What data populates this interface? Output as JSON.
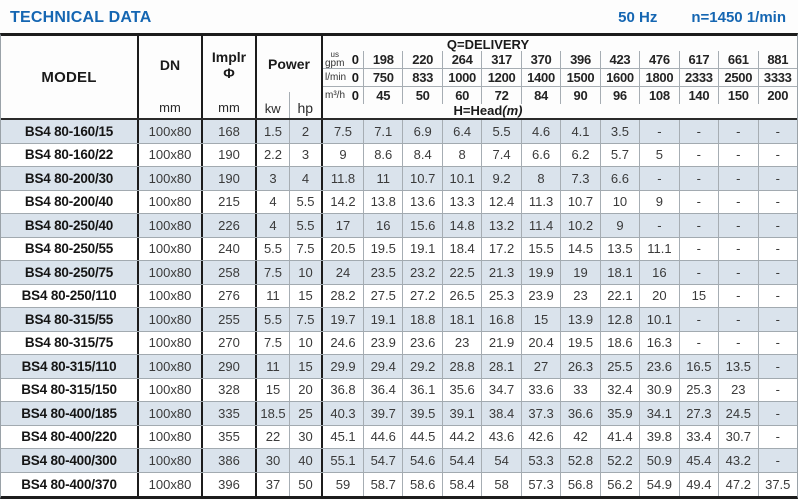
{
  "header": {
    "title": "TECHNICAL DATA",
    "frequency": "50 Hz",
    "speed": "n=1450 1/min"
  },
  "colors": {
    "accent_blue": "#1566b2",
    "row_stripe": "#dae3ec"
  },
  "table": {
    "columns": {
      "model": "MODEL",
      "dn": "DN",
      "dn_unit": "mm",
      "impeller_line1": "Implr",
      "impeller_line2": "Φ",
      "impeller_unit": "mm",
      "power": "Power",
      "power_kw": "kw",
      "power_hp": "hp",
      "delivery_title": "Q=DELIVERY",
      "head_title": "H=Head",
      "head_unit": "(m)"
    },
    "flow_header": [
      {
        "small": "us",
        "label": "gpm",
        "zero": "0",
        "values": [
          "198",
          "220",
          "264",
          "317",
          "370",
          "396",
          "423",
          "476",
          "617",
          "661",
          "881"
        ]
      },
      {
        "small": "",
        "label": "l/min",
        "zero": "0",
        "values": [
          "750",
          "833",
          "1000",
          "1200",
          "1400",
          "1500",
          "1600",
          "1800",
          "2333",
          "2500",
          "3333"
        ]
      },
      {
        "small": "",
        "label": "m³/h",
        "zero": "0",
        "values": [
          "45",
          "50",
          "60",
          "72",
          "84",
          "90",
          "96",
          "108",
          "140",
          "150",
          "200"
        ]
      }
    ],
    "rows": [
      {
        "model": "BS4 80-160/15",
        "dn": "100x80",
        "impeller": "168",
        "kw": "1.5",
        "hp": "2",
        "head": [
          "7.5",
          "7.1",
          "6.9",
          "6.4",
          "5.5",
          "4.6",
          "4.1",
          "3.5",
          "-",
          "-",
          "-",
          "-"
        ]
      },
      {
        "model": "BS4 80-160/22",
        "dn": "100x80",
        "impeller": "190",
        "kw": "2.2",
        "hp": "3",
        "head": [
          "9",
          "8.6",
          "8.4",
          "8",
          "7.4",
          "6.6",
          "6.2",
          "5.7",
          "5",
          "-",
          "-",
          "-"
        ]
      },
      {
        "model": "BS4 80-200/30",
        "dn": "100x80",
        "impeller": "190",
        "kw": "3",
        "hp": "4",
        "head": [
          "11.8",
          "11",
          "10.7",
          "10.1",
          "9.2",
          "8",
          "7.3",
          "6.6",
          "-",
          "-",
          "-",
          "-"
        ]
      },
      {
        "model": "BS4 80-200/40",
        "dn": "100x80",
        "impeller": "215",
        "kw": "4",
        "hp": "5.5",
        "head": [
          "14.2",
          "13.8",
          "13.6",
          "13.3",
          "12.4",
          "11.3",
          "10.7",
          "10",
          "9",
          "-",
          "-",
          "-"
        ]
      },
      {
        "model": "BS4 80-250/40",
        "dn": "100x80",
        "impeller": "226",
        "kw": "4",
        "hp": "5.5",
        "head": [
          "17",
          "16",
          "15.6",
          "14.8",
          "13.2",
          "11.4",
          "10.2",
          "9",
          "-",
          "-",
          "-",
          "-"
        ]
      },
      {
        "model": "BS4 80-250/55",
        "dn": "100x80",
        "impeller": "240",
        "kw": "5.5",
        "hp": "7.5",
        "head": [
          "20.5",
          "19.5",
          "19.1",
          "18.4",
          "17.2",
          "15.5",
          "14.5",
          "13.5",
          "11.1",
          "-",
          "-",
          "-"
        ]
      },
      {
        "model": "BS4 80-250/75",
        "dn": "100x80",
        "impeller": "258",
        "kw": "7.5",
        "hp": "10",
        "head": [
          "24",
          "23.5",
          "23.2",
          "22.5",
          "21.3",
          "19.9",
          "19",
          "18.1",
          "16",
          "-",
          "-",
          "-"
        ]
      },
      {
        "model": "BS4 80-250/110",
        "dn": "100x80",
        "impeller": "276",
        "kw": "11",
        "hp": "15",
        "head": [
          "28.2",
          "27.5",
          "27.2",
          "26.5",
          "25.3",
          "23.9",
          "23",
          "22.1",
          "20",
          "15",
          "-",
          "-"
        ]
      },
      {
        "model": "BS4 80-315/55",
        "dn": "100x80",
        "impeller": "255",
        "kw": "5.5",
        "hp": "7.5",
        "head": [
          "19.7",
          "19.1",
          "18.8",
          "18.1",
          "16.8",
          "15",
          "13.9",
          "12.8",
          "10.1",
          "-",
          "-",
          "-"
        ]
      },
      {
        "model": "BS4 80-315/75",
        "dn": "100x80",
        "impeller": "270",
        "kw": "7.5",
        "hp": "10",
        "head": [
          "24.6",
          "23.9",
          "23.6",
          "23",
          "21.9",
          "20.4",
          "19.5",
          "18.6",
          "16.3",
          "-",
          "-",
          "-"
        ]
      },
      {
        "model": "BS4 80-315/110",
        "dn": "100x80",
        "impeller": "290",
        "kw": "11",
        "hp": "15",
        "head": [
          "29.9",
          "29.4",
          "29.2",
          "28.8",
          "28.1",
          "27",
          "26.3",
          "25.5",
          "23.6",
          "16.5",
          "13.5",
          "-"
        ]
      },
      {
        "model": "BS4 80-315/150",
        "dn": "100x80",
        "impeller": "328",
        "kw": "15",
        "hp": "20",
        "head": [
          "36.8",
          "36.4",
          "36.1",
          "35.6",
          "34.7",
          "33.6",
          "33",
          "32.4",
          "30.9",
          "25.3",
          "23",
          "-"
        ]
      },
      {
        "model": "BS4 80-400/185",
        "dn": "100x80",
        "impeller": "335",
        "kw": "18.5",
        "hp": "25",
        "head": [
          "40.3",
          "39.7",
          "39.5",
          "39.1",
          "38.4",
          "37.3",
          "36.6",
          "35.9",
          "34.1",
          "27.3",
          "24.5",
          "-"
        ]
      },
      {
        "model": "BS4 80-400/220",
        "dn": "100x80",
        "impeller": "355",
        "kw": "22",
        "hp": "30",
        "head": [
          "45.1",
          "44.6",
          "44.5",
          "44.2",
          "43.6",
          "42.6",
          "42",
          "41.4",
          "39.8",
          "33.4",
          "30.7",
          "-"
        ]
      },
      {
        "model": "BS4 80-400/300",
        "dn": "100x80",
        "impeller": "386",
        "kw": "30",
        "hp": "40",
        "head": [
          "55.1",
          "54.7",
          "54.6",
          "54.4",
          "54",
          "53.3",
          "52.8",
          "52.2",
          "50.9",
          "45.4",
          "43.2",
          "-"
        ]
      },
      {
        "model": "BS4 80-400/370",
        "dn": "100x80",
        "impeller": "396",
        "kw": "37",
        "hp": "50",
        "head": [
          "59",
          "58.7",
          "58.6",
          "58.4",
          "58",
          "57.3",
          "56.8",
          "56.2",
          "54.9",
          "49.4",
          "47.2",
          "37.5"
        ]
      }
    ]
  }
}
